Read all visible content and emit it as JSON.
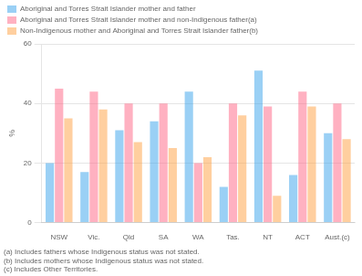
{
  "chart_data": {
    "type": "bar",
    "categories": [
      "NSW",
      "Vic.",
      "Qld",
      "SA",
      "WA",
      "Tas.",
      "NT",
      "ACT",
      "Aust.(c)"
    ],
    "series": [
      {
        "name": "Aboriginal and Torres Strait Islander mother and father",
        "values": [
          20,
          17,
          31,
          34,
          44,
          12,
          51,
          16,
          30
        ]
      },
      {
        "name": "Aboriginal and Torres Strait Islander mother and non-Indigenous father(a)",
        "values": [
          45,
          44,
          40,
          40,
          20,
          40,
          39,
          44,
          40
        ]
      },
      {
        "name": "Non-Indigenous mother and Aboriginal and Torres Strait Islander father(b)",
        "values": [
          35,
          38,
          27,
          25,
          22,
          36,
          9,
          39,
          28
        ]
      }
    ],
    "y_label": "%",
    "ylim": [
      0,
      60
    ],
    "yticks": [
      0,
      20,
      40,
      60
    ],
    "grid": true,
    "legend": "top",
    "annotations": [
      "(a) Includes fathers whose Indigenous status was not stated.",
      "(b) Includes mothers whose Indigenous status was not stated.",
      "(c) Includes Other Territories."
    ]
  }
}
